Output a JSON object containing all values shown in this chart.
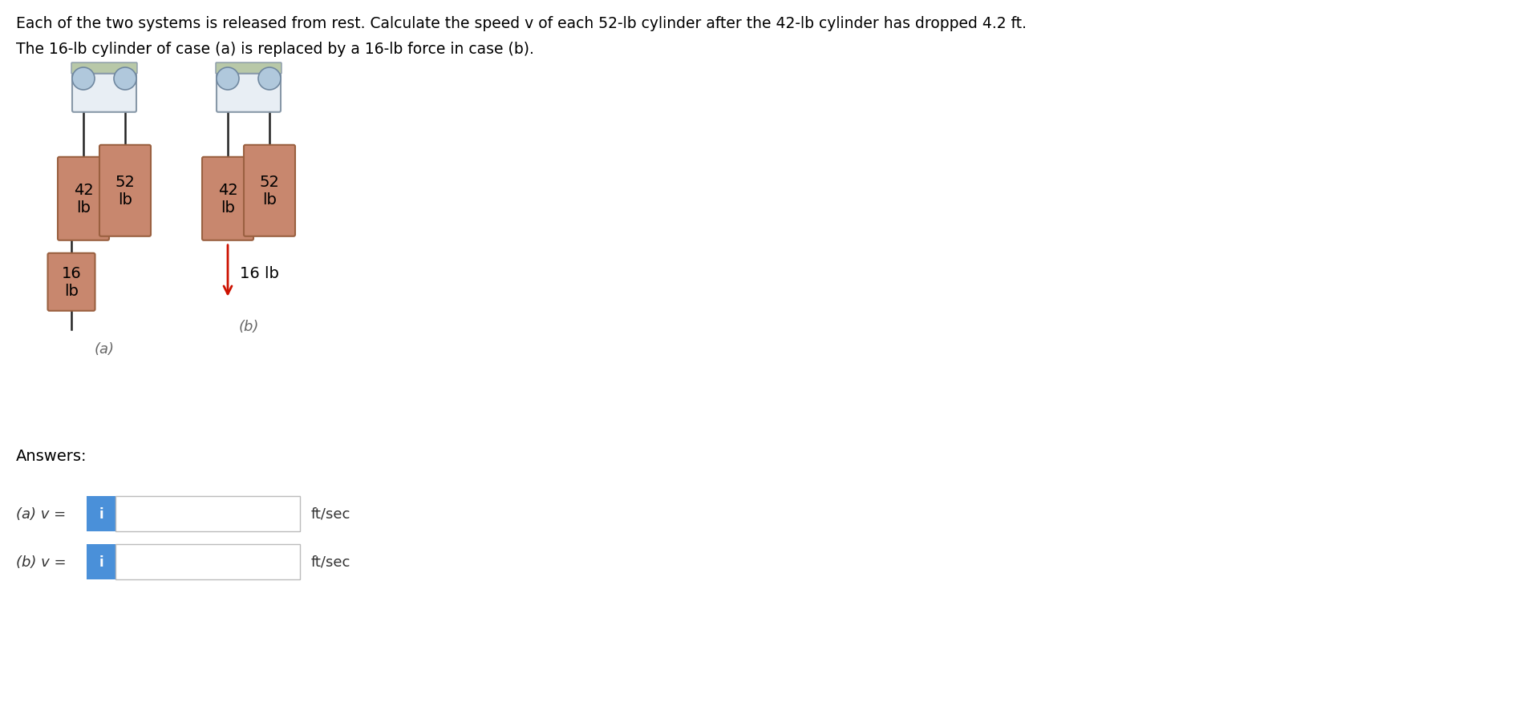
{
  "title_line1": "Each of the two systems is released from rest. Calculate the speed v of each 52-lb cylinder after the 42-lb cylinder has dropped 4.2 ft.",
  "title_line2": "The 16-lb cylinder of case (a) is replaced by a 16-lb force in case (b).",
  "cylinder_color": "#C8876E",
  "cylinder_border": "#9A6040",
  "cylinder_color2": "#C07060",
  "rope_color": "#222222",
  "arrow_color": "#CC1100",
  "answer_box_color": "#4A90D9",
  "box_border_color": "#BBBBBB",
  "text_color": "#333333",
  "pulley_drum_color": "#E8EEF4",
  "pulley_drum_border": "#8898A8",
  "pulley_ball_color": "#B0C8DC",
  "pulley_ball_border": "#7088A0",
  "pulley_support_color": "#B8C8A8",
  "pulley_support_border": "#8898A8",
  "background_color": "#FFFFFF",
  "label_a": "(a)",
  "label_b": "(b)",
  "answers_label": "Answers:",
  "answer_a_label": "(a) v = ",
  "answer_b_label": "(b) v = ",
  "unit_label": "ft/sec",
  "fig_width": 18.9,
  "fig_height": 8.87,
  "dpi": 100
}
